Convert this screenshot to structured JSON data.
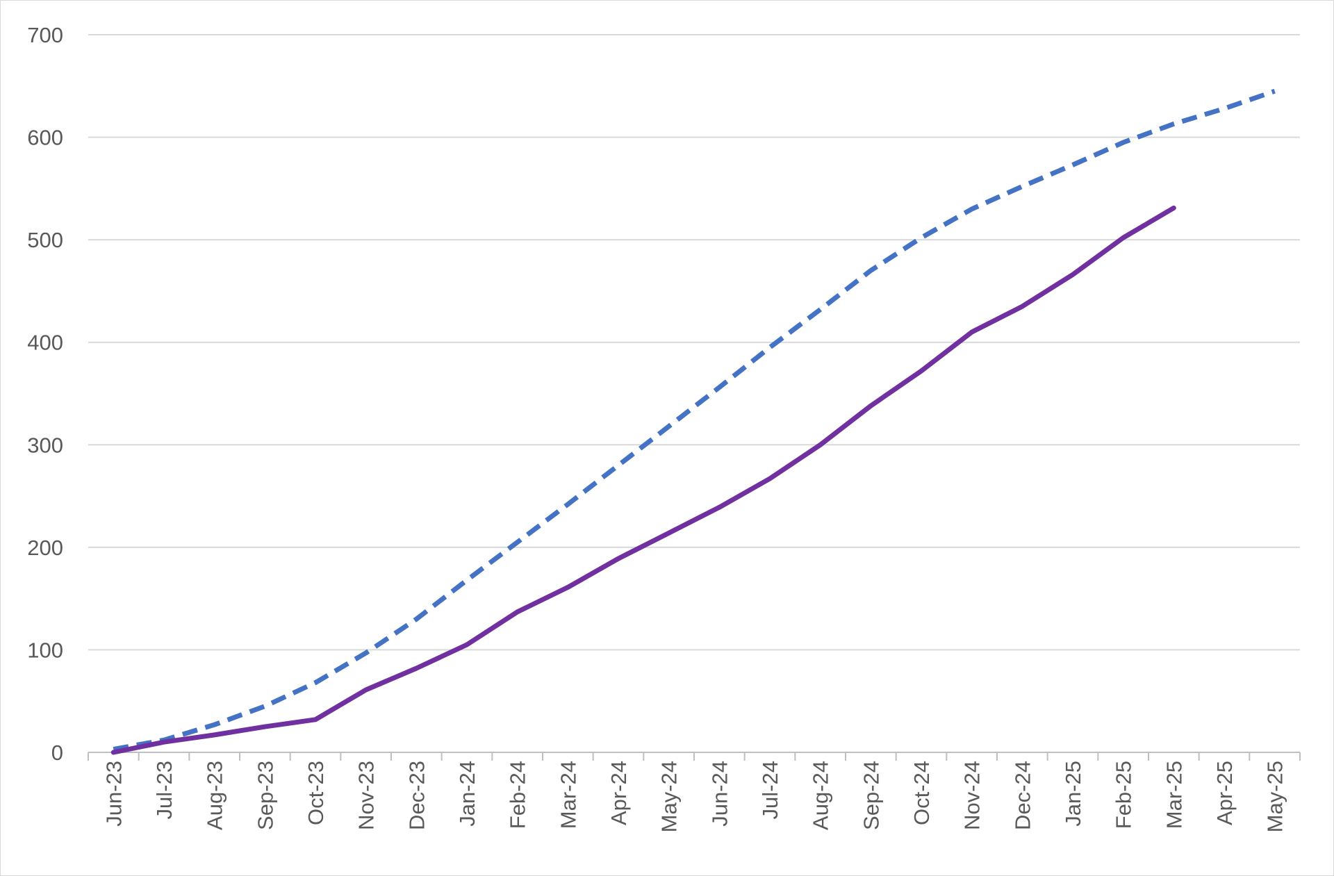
{
  "chart_data": {
    "type": "line",
    "title": "",
    "xlabel": "",
    "ylabel": "",
    "categories": [
      "Jun-23",
      "Jul-23",
      "Aug-23",
      "Sep-23",
      "Oct-23",
      "Nov-23",
      "Dec-23",
      "Jan-24",
      "Feb-24",
      "Mar-24",
      "Apr-24",
      "May-24",
      "Jun-24",
      "Jul-24",
      "Aug-24",
      "Sep-24",
      "Oct-24",
      "Nov-24",
      "Dec-24",
      "Jan-25",
      "Feb-25",
      "Mar-25",
      "Apr-25",
      "May-25"
    ],
    "ylim": [
      0,
      700
    ],
    "yticks": [
      "0",
      "100",
      "200",
      "300",
      "400",
      "500",
      "600",
      "700"
    ],
    "grid": true,
    "legend": "none",
    "series": [
      {
        "style": "solid",
        "color": "#7030a0",
        "values": [
          0,
          10,
          17,
          25,
          32,
          61,
          82,
          105,
          137,
          161,
          189,
          214,
          239,
          267,
          300,
          338,
          372,
          410,
          435,
          466,
          502,
          531,
          null,
          null
        ]
      },
      {
        "style": "dashed",
        "color": "#4472c4",
        "values": [
          3,
          12,
          27,
          45,
          68,
          97,
          130,
          168,
          205,
          242,
          280,
          318,
          356,
          395,
          432,
          470,
          502,
          530,
          552,
          573,
          595,
          613,
          628,
          645
        ]
      }
    ]
  }
}
